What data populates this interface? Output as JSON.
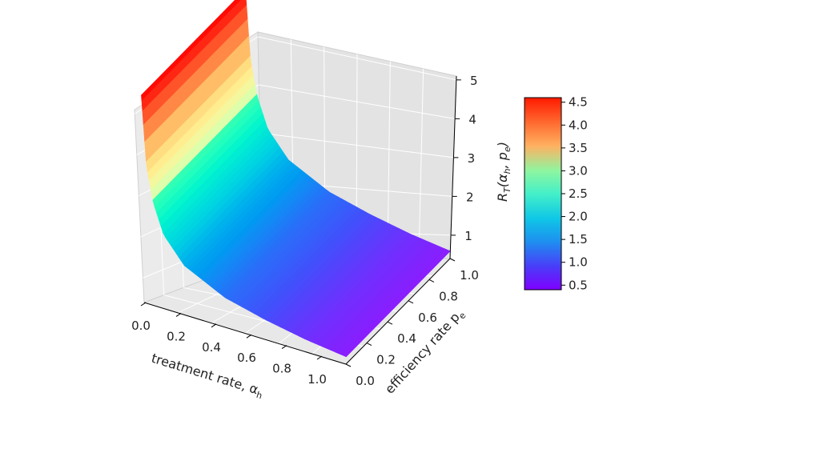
{
  "chart_data": {
    "type": "surface3d",
    "x": {
      "label": "treatment rate, α",
      "label_sub": "h",
      "ticks": [
        "0.0",
        "0.2",
        "0.4",
        "0.6",
        "0.8",
        "1.0"
      ],
      "range": [
        0,
        1
      ]
    },
    "y": {
      "label": "efficiency rate p",
      "label_sub": "e",
      "ticks": [
        "0.0",
        "0.2",
        "0.4",
        "0.6",
        "0.8",
        "1.0"
      ],
      "range": [
        0,
        1
      ]
    },
    "z": {
      "ticks": [
        "1",
        "2",
        "3",
        "4",
        "5"
      ],
      "range": [
        0.4,
        5.1
      ]
    },
    "colorbar": {
      "label": "R",
      "label_sub": "T",
      "label_args": "(α",
      "label_args_sub1": "h",
      "label_args_mid": ", p",
      "label_args_sub2": "e",
      "label_args_end": ")",
      "ticks": [
        "0.5",
        "1.0",
        "1.5",
        "2.0",
        "2.5",
        "3.0",
        "3.5",
        "4.0",
        "4.5"
      ],
      "range": [
        0.4,
        4.6
      ],
      "colormap": "rainbow"
    },
    "surface_samples": [
      {
        "alpha_h": 0.0,
        "R_T": 4.6
      },
      {
        "alpha_h": 0.02,
        "R_T": 3.2
      },
      {
        "alpha_h": 0.05,
        "R_T": 2.5
      },
      {
        "alpha_h": 0.1,
        "R_T": 1.9
      },
      {
        "alpha_h": 0.2,
        "R_T": 1.4
      },
      {
        "alpha_h": 0.4,
        "R_T": 1.0
      },
      {
        "alpha_h": 0.6,
        "R_T": 0.8
      },
      {
        "alpha_h": 0.8,
        "R_T": 0.65
      },
      {
        "alpha_h": 1.0,
        "R_T": 0.55
      }
    ],
    "grid": true
  }
}
